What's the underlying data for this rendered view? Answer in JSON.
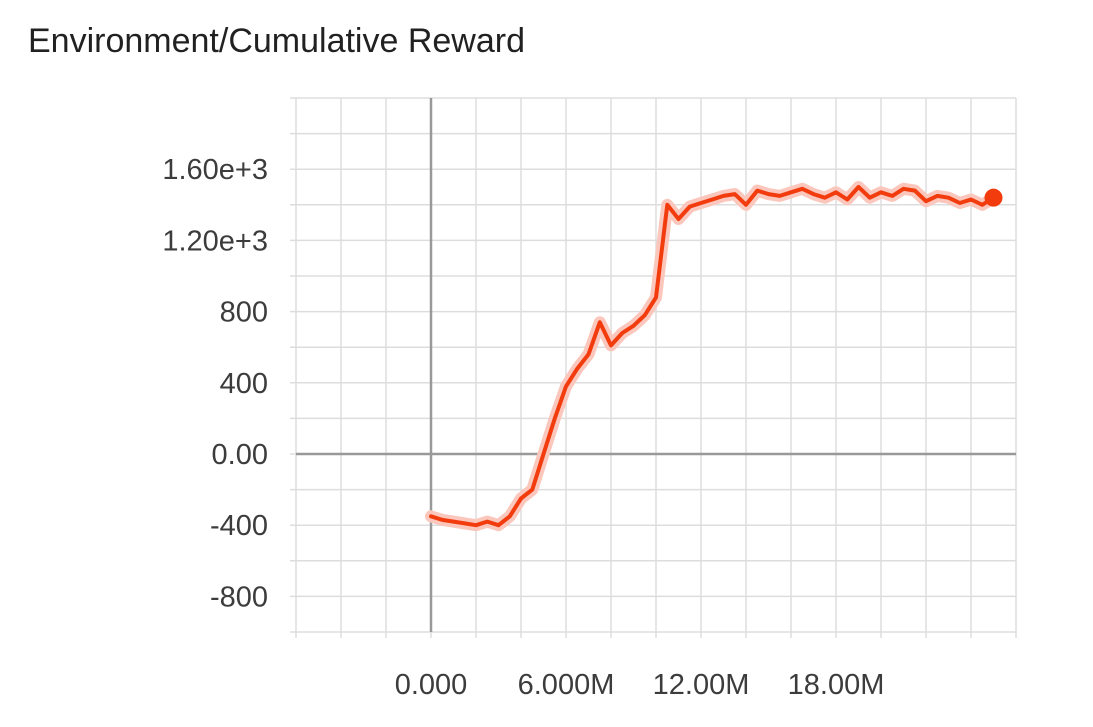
{
  "chart_data": {
    "type": "line",
    "title": "Environment/Cumulative Reward",
    "xlabel": "",
    "ylabel": "",
    "x_tick_labels": [
      "0.000",
      "6.000M",
      "12.00M",
      "18.00M"
    ],
    "x_ticks": [
      0,
      6000000,
      12000000,
      18000000
    ],
    "y_tick_labels": [
      "-800",
      "-400",
      "0.00",
      "400",
      "800",
      "1.20e+3",
      "1.60e+3"
    ],
    "y_ticks": [
      -800,
      -400,
      0,
      400,
      800,
      1200,
      1600
    ],
    "xlim": [
      -6000000,
      26000000
    ],
    "ylim": [
      -1000,
      2000
    ],
    "grid": true,
    "legend": "none",
    "colors": {
      "smoothed": "#f23c0e",
      "raw": "#fbc6bb",
      "zero_axis": "#999999",
      "grid": "#dddddd"
    },
    "series": [
      {
        "x": [
          0,
          500000,
          1000000,
          1500000,
          2000000,
          2500000,
          3000000,
          3500000,
          4000000,
          4500000,
          5000000,
          5500000,
          6000000,
          6500000,
          7000000,
          7500000,
          8000000,
          8500000,
          9000000,
          9500000,
          10000000,
          10500000,
          11000000,
          11500000,
          12000000,
          12500000,
          13000000,
          13500000,
          14000000,
          14500000,
          15000000,
          15500000,
          16000000,
          16500000,
          17000000,
          17500000,
          18000000,
          18500000,
          19000000,
          19500000,
          20000000,
          20500000,
          21000000,
          21500000,
          22000000,
          22500000,
          23000000,
          23500000,
          24000000,
          24500000,
          25000000
        ],
        "values": [
          -350,
          -370,
          -380,
          -390,
          -400,
          -380,
          -400,
          -350,
          -250,
          -200,
          0,
          200,
          380,
          480,
          560,
          740,
          610,
          680,
          720,
          780,
          880,
          1400,
          1320,
          1390,
          1410,
          1430,
          1450,
          1460,
          1400,
          1480,
          1460,
          1450,
          1470,
          1490,
          1460,
          1440,
          1470,
          1430,
          1500,
          1440,
          1470,
          1450,
          1490,
          1480,
          1420,
          1450,
          1440,
          1410,
          1430,
          1400,
          1440
        ]
      }
    ]
  }
}
